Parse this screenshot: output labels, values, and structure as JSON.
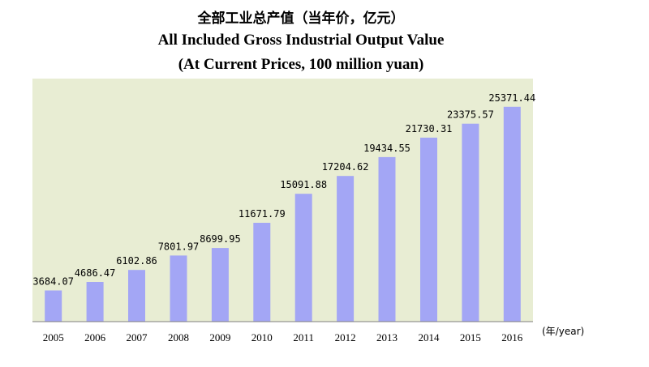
{
  "chart_data": {
    "type": "bar",
    "title": "全部工业总产值（当年价，亿元）",
    "subtitle_en": "All Included Gross Industrial Output Value",
    "subtitle_en_2": "(At Current Prices, 100 million yuan)",
    "x_unit": "(年/year)",
    "categories": [
      "2005",
      "2006",
      "2007",
      "2008",
      "2009",
      "2010",
      "2011",
      "2012",
      "2013",
      "2014",
      "2015",
      "2016"
    ],
    "values": [
      3684.07,
      4686.47,
      6102.86,
      7801.97,
      8699.95,
      11671.79,
      15091.88,
      17204.62,
      19434.55,
      21730.31,
      23375.57,
      25371.44
    ],
    "value_labels": [
      "3684.07",
      "4686.47",
      "6102.86",
      "7801.97",
      "8699.95",
      "11671.79",
      "15091.88",
      "17204.62",
      "19434.55",
      "21730.31",
      "23375.57",
      "25371.44"
    ],
    "ylim": [
      0,
      28700
    ],
    "grid": false,
    "legend": "none",
    "colors": {
      "plot_background": "#E8EDD3",
      "bar": "#A3A6F5",
      "axis": "#7F7F7F"
    }
  }
}
